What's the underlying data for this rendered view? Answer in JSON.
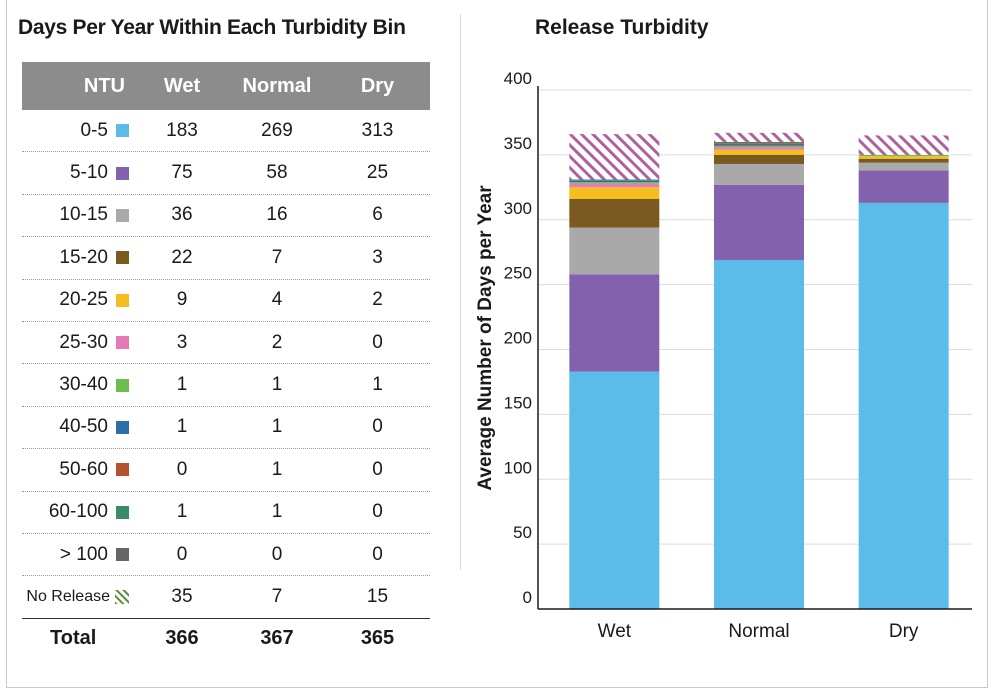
{
  "table": {
    "title": "Days Per Year Within Each Turbidity Bin",
    "headers": [
      "NTU",
      "Wet",
      "Normal",
      "Dry"
    ],
    "rows": [
      {
        "label": "0-5",
        "color": "#5bbbe9",
        "wet": "183",
        "normal": "269",
        "dry": "313"
      },
      {
        "label": "5-10",
        "color": "#8461ad",
        "wet": "75",
        "normal": "58",
        "dry": "25"
      },
      {
        "label": "10-15",
        "color": "#a9a9a9",
        "wet": "36",
        "normal": "16",
        "dry": "6"
      },
      {
        "label": "15-20",
        "color": "#7a5a20",
        "wet": "22",
        "normal": "7",
        "dry": "3"
      },
      {
        "label": "20-25",
        "color": "#f5bd1f",
        "wet": "9",
        "normal": "4",
        "dry": "2"
      },
      {
        "label": "25-30",
        "color": "#e57bb4",
        "wet": "3",
        "normal": "2",
        "dry": "0"
      },
      {
        "label": "30-40",
        "color": "#6bbf4e",
        "wet": "1",
        "normal": "1",
        "dry": "1"
      },
      {
        "label": "40-50",
        "color": "#2a6fa8",
        "wet": "1",
        "normal": "1",
        "dry": "0"
      },
      {
        "label": "50-60",
        "color": "#b5522c",
        "wet": "0",
        "normal": "1",
        "dry": "0"
      },
      {
        "label": "60-100",
        "color": "#3b8a6a",
        "wet": "1",
        "normal": "1",
        "dry": "0"
      },
      {
        "label": "> 100",
        "color": "#666666",
        "wet": "0",
        "normal": "0",
        "dry": "0"
      }
    ],
    "no_release": {
      "label": "No Release",
      "wet": "35",
      "normal": "7",
      "dry": "15"
    },
    "total": {
      "label": "Total",
      "wet": "366",
      "normal": "367",
      "dry": "365"
    }
  },
  "chart_data": {
    "type": "bar",
    "stacked": true,
    "title": "Release Turbidity",
    "xlabel": "",
    "ylabel": "Average Number of Days per Year",
    "categories": [
      "Wet",
      "Normal",
      "Dry"
    ],
    "ylim": [
      0,
      400
    ],
    "yticks": [
      "0",
      "50",
      "100",
      "150",
      "200",
      "250",
      "300",
      "350",
      "400"
    ],
    "grid": true,
    "series": [
      {
        "name": "0-5",
        "color": "#5bbbe9",
        "values": [
          183,
          269,
          313
        ]
      },
      {
        "name": "5-10",
        "color": "#8461ad",
        "values": [
          75,
          58,
          25
        ]
      },
      {
        "name": "10-15",
        "color": "#a9a9a9",
        "values": [
          36,
          16,
          6
        ]
      },
      {
        "name": "15-20",
        "color": "#7a5a20",
        "values": [
          22,
          7,
          3
        ]
      },
      {
        "name": "20-25",
        "color": "#f5bd1f",
        "values": [
          9,
          4,
          2
        ]
      },
      {
        "name": "25-30",
        "color": "#e57bb4",
        "values": [
          3,
          2,
          0
        ]
      },
      {
        "name": "30-40",
        "color": "#6bbf4e",
        "values": [
          1,
          1,
          1
        ]
      },
      {
        "name": "40-50",
        "color": "#2a6fa8",
        "values": [
          1,
          1,
          0
        ]
      },
      {
        "name": "50-60",
        "color": "#b5522c",
        "values": [
          0,
          1,
          0
        ]
      },
      {
        "name": "60-100",
        "color": "#3b8a6a",
        "values": [
          1,
          1,
          0
        ]
      },
      {
        "name": "> 100",
        "color": "#666666",
        "values": [
          0,
          0,
          0
        ]
      },
      {
        "name": "No Release",
        "color": "#b0609f",
        "hatched": true,
        "values": [
          35,
          7,
          15
        ]
      }
    ]
  }
}
